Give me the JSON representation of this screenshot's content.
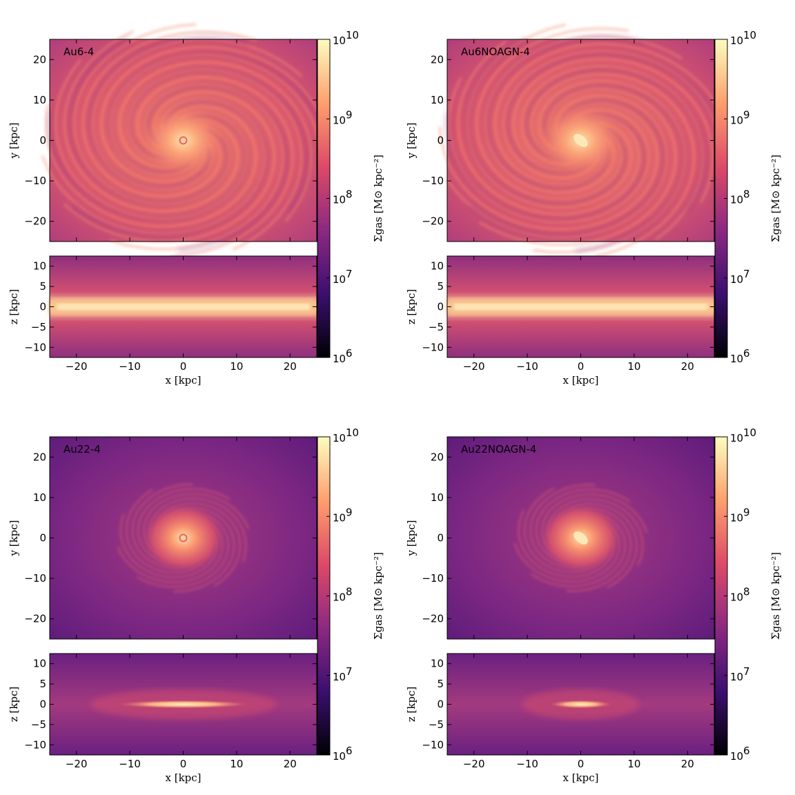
{
  "panels": [
    {
      "title": "Au6-4",
      "theme": "bright"
    },
    {
      "title": "Au6NOAGN-4",
      "theme": "bright"
    },
    {
      "title": "Au22-4",
      "theme": "dark"
    },
    {
      "title": "Au22NOAGN-4",
      "theme": "dark"
    }
  ],
  "axes": {
    "x_ticks": [
      "−20",
      "−10",
      "0",
      "10",
      "20"
    ],
    "y_ticks": [
      "20",
      "10",
      "0",
      "−10",
      "−20"
    ],
    "z_ticks": [
      "10",
      "5",
      "0",
      "−5",
      "−10"
    ],
    "x_label": "x [kpc]",
    "y_label": "y [kpc]",
    "z_label": "z [kpc]",
    "xlim": [
      -25,
      25
    ],
    "ylim": [
      -25,
      25
    ],
    "zlim": [
      -12.5,
      12.5
    ]
  },
  "colorbar": {
    "label": "Σgas [M⊙ kpc⁻²]",
    "ticks": [
      "10",
      "10",
      "10",
      "10",
      "10"
    ],
    "exponents": [
      "10",
      "9",
      "8",
      "7",
      "6"
    ],
    "range": [
      1000000,
      10000000000
    ],
    "scale": "log",
    "colormap": "magma",
    "stops": [
      "#000004",
      "#3b0f70",
      "#8c2981",
      "#de4968",
      "#fe9f6d",
      "#fcfdbf"
    ]
  }
}
